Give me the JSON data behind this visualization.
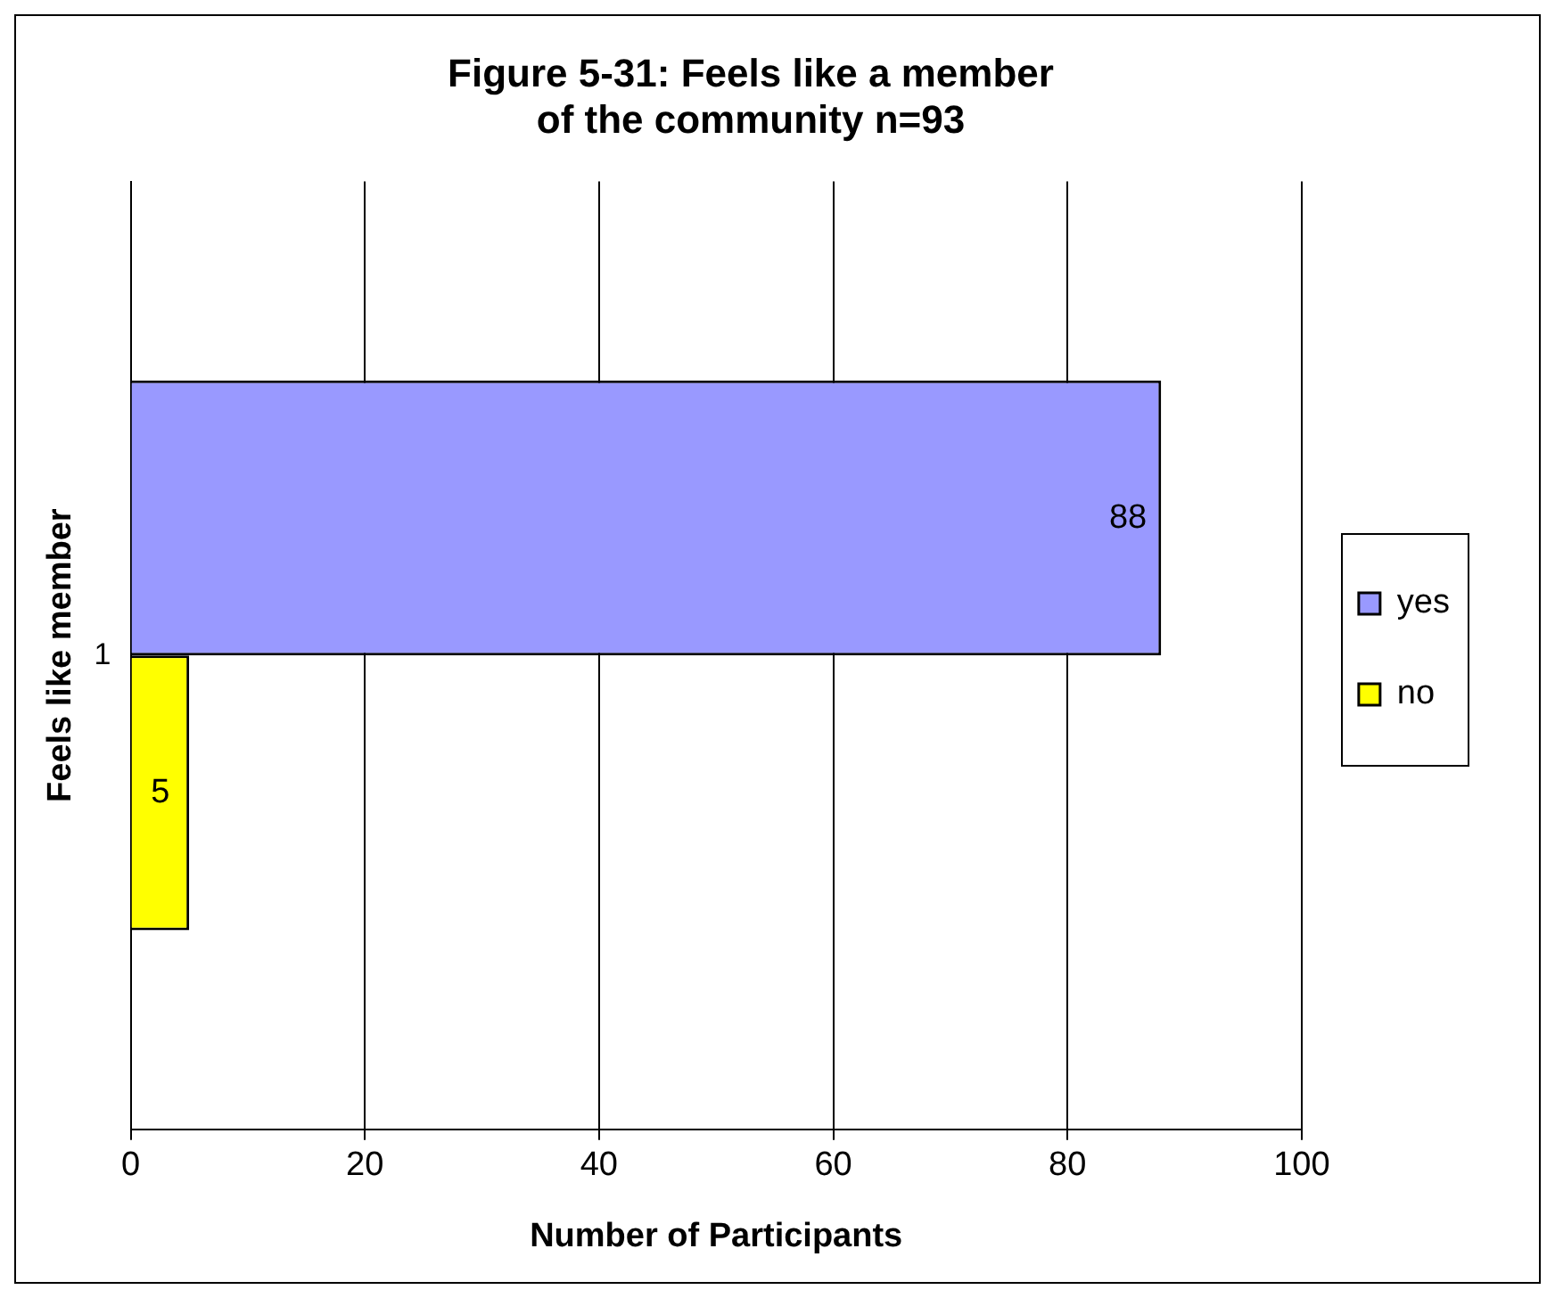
{
  "chart_data": {
    "type": "bar",
    "orientation": "horizontal",
    "title": "Figure 5-31: Feels like a member\nof the community n=93",
    "xlabel": "Number of Participants",
    "ylabel": "Feels like member",
    "categories": [
      "1"
    ],
    "series": [
      {
        "name": "yes",
        "color": "#9999ff",
        "values": [
          88
        ]
      },
      {
        "name": "no",
        "color": "#ffff00",
        "values": [
          5
        ]
      }
    ],
    "xlim": [
      0,
      100
    ],
    "xticks": [
      0,
      20,
      40,
      60,
      80,
      100
    ],
    "grid": "x",
    "legend": "right",
    "data_labels": true
  }
}
